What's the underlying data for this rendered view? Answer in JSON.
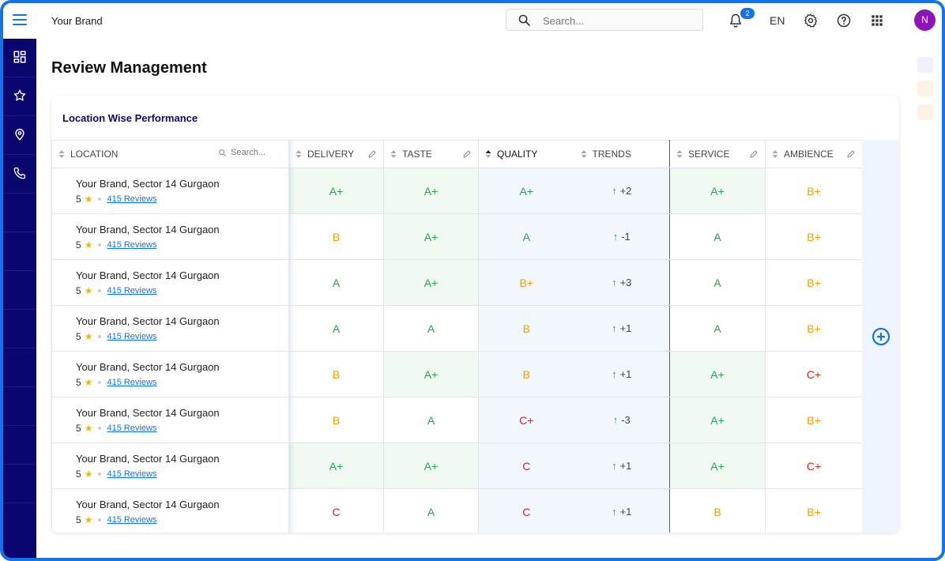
{
  "header": {
    "brand": "Your Brand",
    "search_placeholder": "Search...",
    "notification_count": "2",
    "language": "EN",
    "avatar_initial": "N"
  },
  "page": {
    "title": "Review Management"
  },
  "card": {
    "title": "Location Wise Performance",
    "location_search_placeholder": "Search..."
  },
  "columns": {
    "location": "LOCATION",
    "delivery": "DELIVERY",
    "taste": "TASTE",
    "quality": "QUALITY",
    "trends": "TRENDS",
    "service": "SERVICE",
    "ambience": "AMBIENCE"
  },
  "rows": [
    {
      "name": "Your Brand, Sector 14 Gurgaon",
      "rating": "5",
      "reviews": "415 Reviews",
      "delivery": "A+",
      "taste": "A+",
      "quality": "A+",
      "trend": "+2",
      "service": "A+",
      "ambience": "B+"
    },
    {
      "name": "Your Brand, Sector 14 Gurgaon",
      "rating": "5",
      "reviews": "415 Reviews",
      "delivery": "B",
      "taste": "A+",
      "quality": "A",
      "trend": "-1",
      "service": "A",
      "ambience": "B+"
    },
    {
      "name": "Your Brand, Sector 14 Gurgaon",
      "rating": "5",
      "reviews": "415 Reviews",
      "delivery": "A",
      "taste": "A+",
      "quality": "B+",
      "trend": "+3",
      "service": "A",
      "ambience": "B+"
    },
    {
      "name": "Your Brand, Sector 14 Gurgaon",
      "rating": "5",
      "reviews": "415 Reviews",
      "delivery": "A",
      "taste": "A",
      "quality": "B",
      "trend": "+1",
      "service": "A",
      "ambience": "B+"
    },
    {
      "name": "Your Brand, Sector 14 Gurgaon",
      "rating": "5",
      "reviews": "415 Reviews",
      "delivery": "B",
      "taste": "A+",
      "quality": "B",
      "trend": "+1",
      "service": "A+",
      "ambience": "C+"
    },
    {
      "name": "Your Brand, Sector 14 Gurgaon",
      "rating": "5",
      "reviews": "415 Reviews",
      "delivery": "B",
      "taste": "A",
      "quality": "C+",
      "trend": "-3",
      "service": "A+",
      "ambience": "B+"
    },
    {
      "name": "Your Brand, Sector 14 Gurgaon",
      "rating": "5",
      "reviews": "415 Reviews",
      "delivery": "A+",
      "taste": "A+",
      "quality": "C",
      "trend": "+1",
      "service": "A+",
      "ambience": "C+"
    },
    {
      "name": "Your Brand, Sector 14 Gurgaon",
      "rating": "5",
      "reviews": "415 Reviews",
      "delivery": "C",
      "taste": "A",
      "quality": "C",
      "trend": "+1",
      "service": "B",
      "ambience": "B+"
    }
  ],
  "sidebar": {
    "items": [
      "dashboard-icon",
      "star-icon",
      "location-pin-icon",
      "phone-icon"
    ]
  },
  "colors": {
    "accent": "#1473e6",
    "sidebar": "#0a0670",
    "grade_green": "#1ea94a",
    "grade_orange": "#f0a000",
    "grade_red": "#c9282d"
  }
}
